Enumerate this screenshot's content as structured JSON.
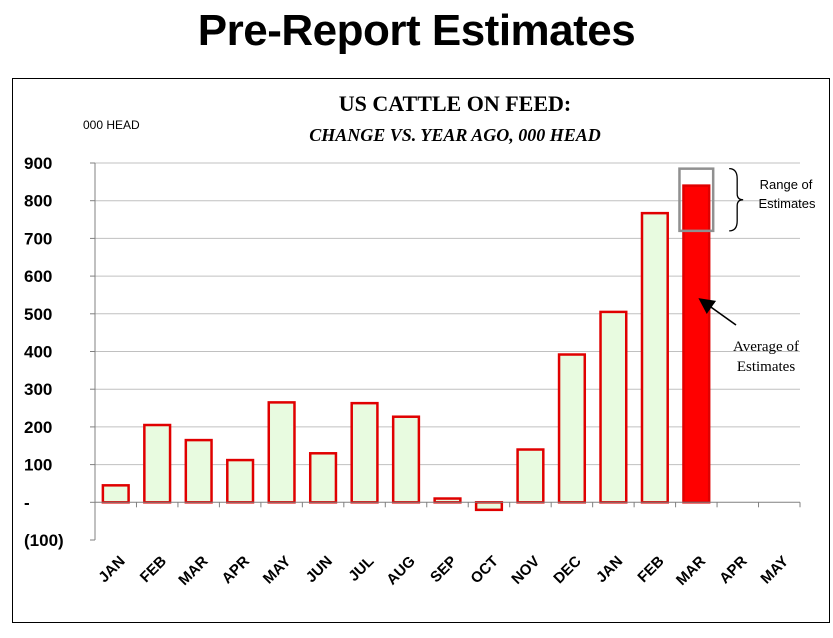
{
  "page": {
    "title": "Pre-Report Estimates"
  },
  "chart_data": {
    "type": "bar",
    "title": "US CATTLE ON FEED:",
    "subtitle": "CHANGE VS. YEAR AGO, 000 HEAD",
    "ylabel": "000 HEAD",
    "xlabel": "",
    "ylim": [
      -100,
      900
    ],
    "yticks": [
      900,
      800,
      700,
      600,
      500,
      400,
      300,
      200,
      100,
      0,
      -100
    ],
    "ytick_labels": [
      "900",
      "800",
      "700",
      "600",
      "500",
      "400",
      "300",
      "200",
      "100",
      "-",
      "(100)"
    ],
    "grid": true,
    "categories": [
      "JAN",
      "FEB",
      "MAR",
      "APR",
      "MAY",
      "JUN",
      "JUL",
      "AUG",
      "SEP",
      "OCT",
      "NOV",
      "DEC",
      "JAN",
      "FEB",
      "MAR",
      "APR",
      "MAY"
    ],
    "values": [
      45,
      205,
      165,
      112,
      265,
      130,
      263,
      227,
      10,
      -20,
      140,
      392,
      505,
      767,
      840,
      null,
      null
    ],
    "highlight_index": 14,
    "estimate_range": [
      720,
      885
    ],
    "colors": {
      "bar_fill": "#e8fbe0",
      "bar_stroke": "#e00000",
      "highlight_fill": "#ff0000",
      "range_stroke": "#909090",
      "grid": "#c0c0c0"
    },
    "annotations": [
      {
        "text_lines": [
          "Range of",
          "Estimates"
        ]
      },
      {
        "text_lines": [
          "Average of",
          "Estimates"
        ]
      }
    ]
  }
}
